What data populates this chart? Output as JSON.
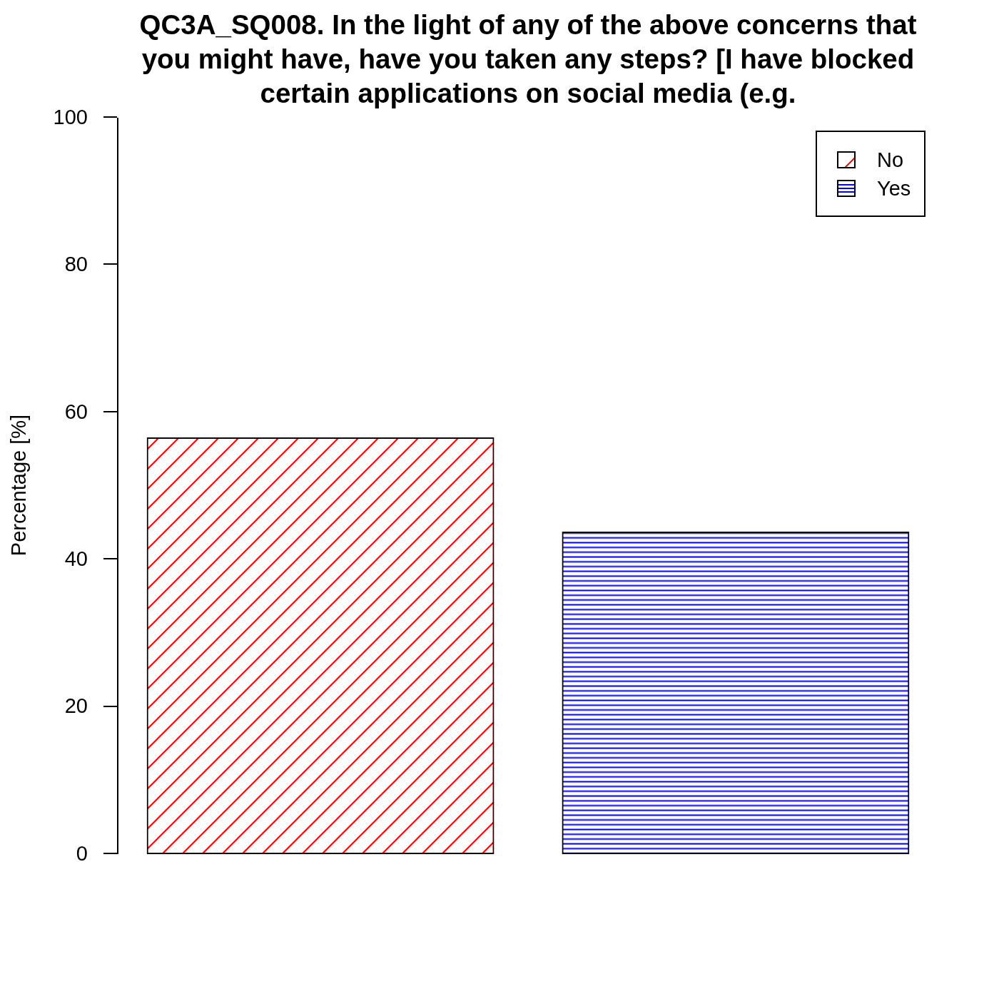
{
  "chart_data": {
    "type": "bar",
    "title": "QC3A_SQ008. In the light of any of the above concerns that\nyou might have, have you taken any steps? [I have blocked\ncertain applications on social media (e.g.",
    "ylabel": "Percentage [%]",
    "categories": [
      null,
      null
    ],
    "series": [
      {
        "name": "No",
        "color": "#ff0000",
        "values": [
          56.4,
          null
        ]
      },
      {
        "name": "Yes",
        "color": "#0000ff",
        "values": [
          null,
          43.6
        ]
      }
    ],
    "stacked": true,
    "ylim": [
      0,
      100
    ],
    "yticks": [
      0,
      20,
      40,
      60,
      80,
      100
    ],
    "legend": "top right"
  }
}
